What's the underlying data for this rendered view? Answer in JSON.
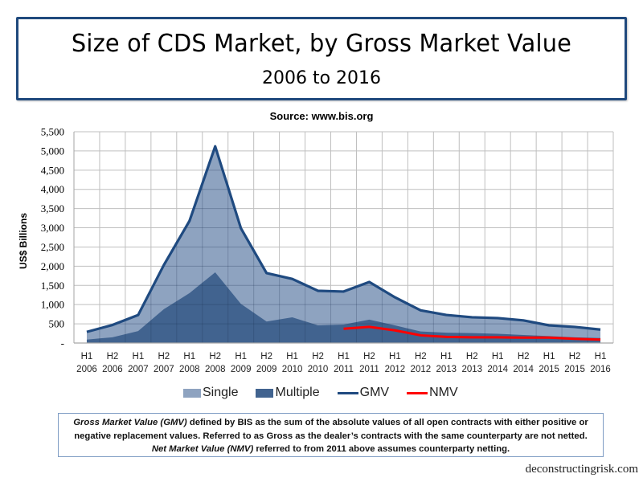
{
  "header": {
    "title": "Size of CDS Market, by Gross Market Value",
    "subtitle": "2006 to 2016",
    "source": "Source: www.bis.org"
  },
  "colors": {
    "single": "#8EA3C0",
    "multiple": "#41638F",
    "gmv": "#1F4A80",
    "nmv": "#FF0000",
    "title_border": "#1F497D"
  },
  "chart_data": {
    "type": "area",
    "title": "Size of CDS Market, by Gross Market Value",
    "subtitle": "2006 to 2016",
    "xlabel": "",
    "ylabel": "US$ Billions",
    "ylim": [
      0,
      5500
    ],
    "yticks": [
      0,
      500,
      1000,
      1500,
      2000,
      2500,
      3000,
      3500,
      4000,
      4500,
      5000,
      5500
    ],
    "ytick_labels": [
      "-",
      "500",
      "1,000",
      "1,500",
      "2,000",
      "2,500",
      "3,000",
      "3,500",
      "4,000",
      "4,500",
      "5,000",
      "5,500"
    ],
    "grid": true,
    "legend_position": "bottom",
    "categories": [
      [
        "H1",
        "2006"
      ],
      [
        "H2",
        "2006"
      ],
      [
        "H1",
        "2007"
      ],
      [
        "H2",
        "2007"
      ],
      [
        "H1",
        "2008"
      ],
      [
        "H2",
        "2008"
      ],
      [
        "H1",
        "2009"
      ],
      [
        "H2",
        "2009"
      ],
      [
        "H1",
        "2010"
      ],
      [
        "H2",
        "2010"
      ],
      [
        "H1",
        "2011"
      ],
      [
        "H2",
        "2011"
      ],
      [
        "H1",
        "2012"
      ],
      [
        "H2",
        "2012"
      ],
      [
        "H1",
        "2013"
      ],
      [
        "H2",
        "2013"
      ],
      [
        "H1",
        "2014"
      ],
      [
        "H2",
        "2014"
      ],
      [
        "H1",
        "2015"
      ],
      [
        "H2",
        "2015"
      ],
      [
        "H1",
        "2016"
      ]
    ],
    "series": [
      {
        "name": "Single",
        "kind": "area",
        "values": [
          200,
          320,
          420,
          1150,
          1880,
          3280,
          1970,
          1260,
          1000,
          900,
          860,
          980,
          730,
          550,
          460,
          410,
          410,
          380,
          280,
          270,
          220
        ]
      },
      {
        "name": "Multiple",
        "kind": "area",
        "values": [
          90,
          150,
          310,
          880,
          1300,
          1840,
          1020,
          560,
          670,
          460,
          480,
          610,
          460,
          300,
          270,
          260,
          240,
          210,
          180,
          150,
          130
        ]
      },
      {
        "name": "GMV",
        "kind": "line",
        "values": [
          290,
          470,
          730,
          2030,
          3180,
          5120,
          2990,
          1820,
          1670,
          1360,
          1340,
          1590,
          1190,
          850,
          730,
          670,
          650,
          590,
          460,
          420,
          350
        ]
      },
      {
        "name": "NMV",
        "kind": "line",
        "values": [
          null,
          null,
          null,
          null,
          null,
          null,
          null,
          null,
          null,
          null,
          370,
          420,
          330,
          200,
          160,
          150,
          150,
          140,
          140,
          110,
          90
        ]
      }
    ]
  },
  "legend": [
    {
      "label": "Single",
      "type": "area"
    },
    {
      "label": "Multiple",
      "type": "area"
    },
    {
      "label": "GMV",
      "type": "line"
    },
    {
      "label": "NMV",
      "type": "line"
    }
  ],
  "footnote": {
    "line1_em": "Gross Market Value (GMV)",
    "line1_rest": " defined by BIS as the sum of the absolute values of all open contracts with either positive or",
    "line2": "negative replacement values. Referred to as Gross as the dealer’s contracts with the same counterparty are not netted.",
    "line3_em": "Net Market Value (NMV)",
    "line3_rest": " referred to from 2011 above assumes counterparty netting."
  },
  "credit": "deconstructingrisk.com"
}
